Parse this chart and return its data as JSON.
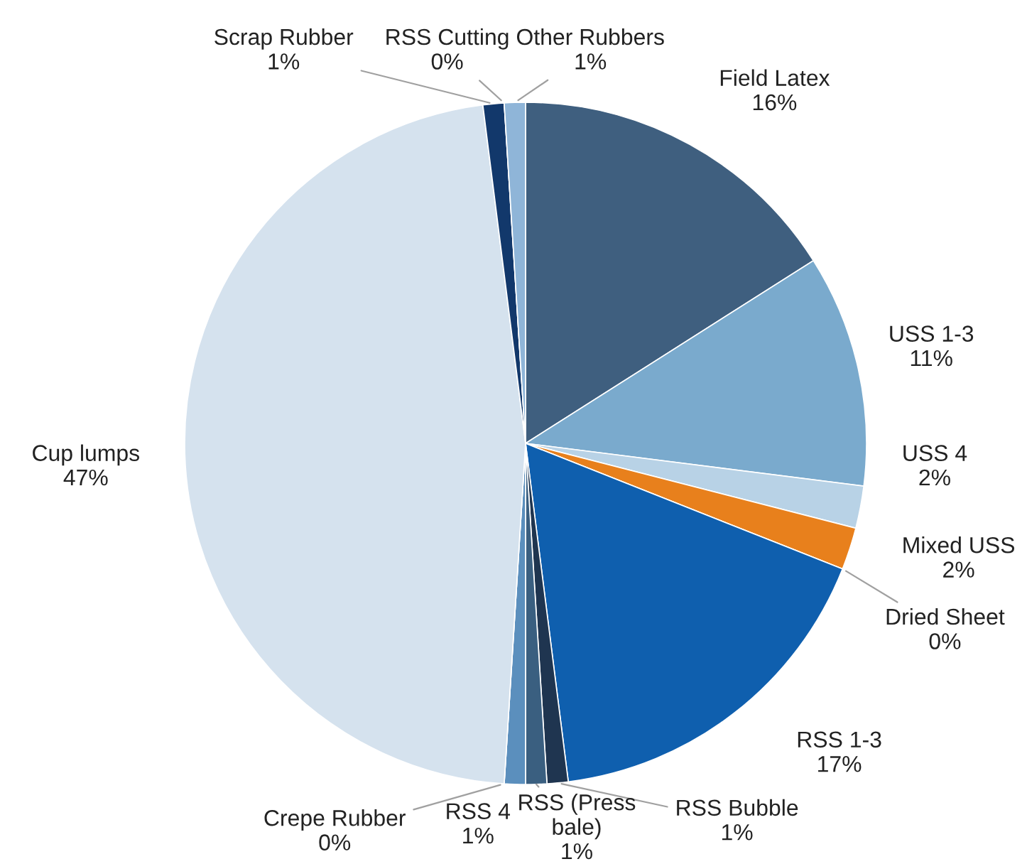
{
  "chart_data": {
    "type": "pie",
    "categories": [
      "Field Latex",
      "USS 1-3",
      "USS 4",
      "Mixed USS",
      "Dried Sheet",
      "RSS 1-3",
      "RSS Bubble",
      "RSS (Press\nbale)",
      "RSS 4",
      "Crepe Rubber",
      "Cup lumps",
      "Scrap Rubber",
      "RSS Cutting",
      "Other Rubbers"
    ],
    "values": [
      16,
      11,
      2,
      2,
      0,
      17,
      1,
      1,
      1,
      0,
      47,
      1,
      0,
      1
    ],
    "value_labels": [
      "16%",
      "11%",
      "2%",
      "2%",
      "0%",
      "17%",
      "1%",
      "1%",
      "1%",
      "0%",
      "47%",
      "1%",
      "0%",
      "1%"
    ],
    "colors": [
      "#3f5f7f",
      "#7aaacd",
      "#b8d2e6",
      "#e8801c",
      "#7f3f10",
      "#0f5fae",
      "#1f3550",
      "#3a5f80",
      "#5b8fbd",
      "#a05a20",
      "#d5e2ee",
      "#12386b",
      "#3a6ea5",
      "#8fb5d8"
    ]
  }
}
